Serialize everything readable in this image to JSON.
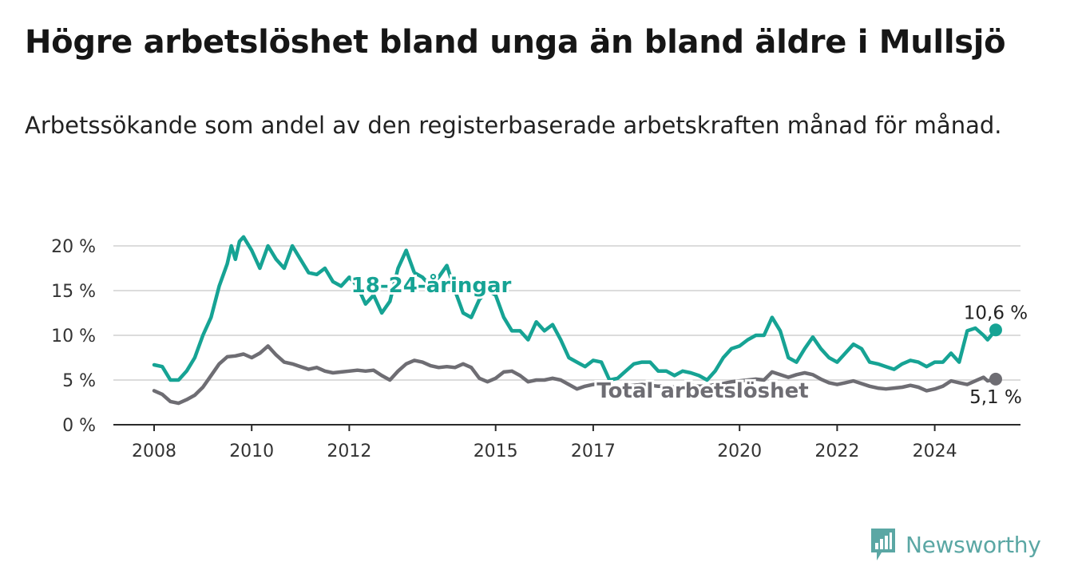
{
  "title": "Högre arbetslöshet bland unga än bland äldre i Mullsjö",
  "subtitle": "Arbetssökande som andel av den registerbaserade arbetskraften månad för månad.",
  "brand": {
    "name": "Newsworthy",
    "color": "#5ba7a4"
  },
  "chart_data": {
    "type": "line",
    "title": "Högre arbetslöshet bland unga än bland äldre i Mullsjö",
    "xlabel": "",
    "ylabel": "",
    "ylim": [
      0,
      20
    ],
    "xlim": [
      "2008-01",
      "2025-06"
    ],
    "grid": true,
    "legend": "inline",
    "y_ticks": [
      "0 %",
      "5 %",
      "10 %",
      "15 %",
      "20 %"
    ],
    "x_ticks": [
      "2008",
      "2010",
      "2012",
      "2015",
      "2017",
      "2020",
      "2022",
      "2024"
    ],
    "series": [
      {
        "name": "18-24-åringar",
        "color": "#16a394",
        "end_label": "10,6 %",
        "points": [
          [
            "2008-01",
            6.7
          ],
          [
            "2008-03",
            6.5
          ],
          [
            "2008-05",
            5.0
          ],
          [
            "2008-07",
            5.0
          ],
          [
            "2008-09",
            6.0
          ],
          [
            "2008-11",
            7.5
          ],
          [
            "2009-01",
            10.0
          ],
          [
            "2009-03",
            12.0
          ],
          [
            "2009-05",
            15.5
          ],
          [
            "2009-07",
            18.0
          ],
          [
            "2009-08",
            20.0
          ],
          [
            "2009-09",
            18.5
          ],
          [
            "2009-10",
            20.5
          ],
          [
            "2009-11",
            21.0
          ],
          [
            "2010-01",
            19.5
          ],
          [
            "2010-03",
            17.5
          ],
          [
            "2010-05",
            20.0
          ],
          [
            "2010-07",
            18.5
          ],
          [
            "2010-09",
            17.5
          ],
          [
            "2010-11",
            20.0
          ],
          [
            "2011-01",
            18.5
          ],
          [
            "2011-03",
            17.0
          ],
          [
            "2011-05",
            16.8
          ],
          [
            "2011-07",
            17.5
          ],
          [
            "2011-09",
            16.0
          ],
          [
            "2011-11",
            15.5
          ],
          [
            "2012-01",
            16.5
          ],
          [
            "2012-03",
            15.5
          ],
          [
            "2012-05",
            13.5
          ],
          [
            "2012-07",
            14.5
          ],
          [
            "2012-09",
            12.5
          ],
          [
            "2012-11",
            13.8
          ],
          [
            "2013-01",
            17.5
          ],
          [
            "2013-03",
            19.5
          ],
          [
            "2013-05",
            17.0
          ],
          [
            "2013-07",
            16.5
          ],
          [
            "2013-09",
            15.5
          ],
          [
            "2013-11",
            16.5
          ],
          [
            "2014-01",
            17.8
          ],
          [
            "2014-03",
            15.0
          ],
          [
            "2014-05",
            12.5
          ],
          [
            "2014-07",
            12.0
          ],
          [
            "2014-09",
            14.0
          ],
          [
            "2014-11",
            15.0
          ],
          [
            "2015-01",
            14.5
          ],
          [
            "2015-03",
            12.0
          ],
          [
            "2015-05",
            10.5
          ],
          [
            "2015-07",
            10.5
          ],
          [
            "2015-09",
            9.5
          ],
          [
            "2015-11",
            11.5
          ],
          [
            "2016-01",
            10.5
          ],
          [
            "2016-03",
            11.2
          ],
          [
            "2016-05",
            9.5
          ],
          [
            "2016-07",
            7.5
          ],
          [
            "2016-09",
            7.0
          ],
          [
            "2016-11",
            6.5
          ],
          [
            "2017-01",
            7.2
          ],
          [
            "2017-03",
            7.0
          ],
          [
            "2017-05",
            5.0
          ],
          [
            "2017-07",
            5.2
          ],
          [
            "2017-09",
            6.0
          ],
          [
            "2017-11",
            6.8
          ],
          [
            "2018-01",
            7.0
          ],
          [
            "2018-03",
            7.0
          ],
          [
            "2018-05",
            6.0
          ],
          [
            "2018-07",
            6.0
          ],
          [
            "2018-09",
            5.5
          ],
          [
            "2018-11",
            6.0
          ],
          [
            "2019-01",
            5.8
          ],
          [
            "2019-03",
            5.5
          ],
          [
            "2019-05",
            5.0
          ],
          [
            "2019-07",
            6.0
          ],
          [
            "2019-09",
            7.5
          ],
          [
            "2019-11",
            8.5
          ],
          [
            "2020-01",
            8.8
          ],
          [
            "2020-03",
            9.5
          ],
          [
            "2020-05",
            10.0
          ],
          [
            "2020-07",
            10.0
          ],
          [
            "2020-09",
            12.0
          ],
          [
            "2020-11",
            10.5
          ],
          [
            "2021-01",
            7.5
          ],
          [
            "2021-03",
            7.0
          ],
          [
            "2021-05",
            8.5
          ],
          [
            "2021-07",
            9.8
          ],
          [
            "2021-09",
            8.5
          ],
          [
            "2021-11",
            7.5
          ],
          [
            "2022-01",
            7.0
          ],
          [
            "2022-03",
            8.0
          ],
          [
            "2022-05",
            9.0
          ],
          [
            "2022-07",
            8.5
          ],
          [
            "2022-09",
            7.0
          ],
          [
            "2022-11",
            6.8
          ],
          [
            "2023-01",
            6.5
          ],
          [
            "2023-03",
            6.2
          ],
          [
            "2023-05",
            6.8
          ],
          [
            "2023-07",
            7.2
          ],
          [
            "2023-09",
            7.0
          ],
          [
            "2023-11",
            6.5
          ],
          [
            "2024-01",
            7.0
          ],
          [
            "2024-03",
            7.0
          ],
          [
            "2024-05",
            8.0
          ],
          [
            "2024-07",
            7.0
          ],
          [
            "2024-09",
            10.5
          ],
          [
            "2024-11",
            10.8
          ],
          [
            "2025-01",
            10.0
          ],
          [
            "2025-02",
            9.5
          ],
          [
            "2025-04",
            10.6
          ]
        ]
      },
      {
        "name": "Total arbetslöshet",
        "color": "#6e6d73",
        "end_label": "5,1 %",
        "points": [
          [
            "2008-01",
            3.8
          ],
          [
            "2008-03",
            3.4
          ],
          [
            "2008-05",
            2.6
          ],
          [
            "2008-07",
            2.4
          ],
          [
            "2008-09",
            2.8
          ],
          [
            "2008-11",
            3.3
          ],
          [
            "2009-01",
            4.2
          ],
          [
            "2009-03",
            5.5
          ],
          [
            "2009-05",
            6.8
          ],
          [
            "2009-07",
            7.6
          ],
          [
            "2009-09",
            7.7
          ],
          [
            "2009-11",
            7.9
          ],
          [
            "2010-01",
            7.5
          ],
          [
            "2010-03",
            8.0
          ],
          [
            "2010-05",
            8.8
          ],
          [
            "2010-07",
            7.8
          ],
          [
            "2010-09",
            7.0
          ],
          [
            "2010-11",
            6.8
          ],
          [
            "2011-01",
            6.5
          ],
          [
            "2011-03",
            6.2
          ],
          [
            "2011-05",
            6.4
          ],
          [
            "2011-07",
            6.0
          ],
          [
            "2011-09",
            5.8
          ],
          [
            "2011-11",
            5.9
          ],
          [
            "2012-01",
            6.0
          ],
          [
            "2012-03",
            6.1
          ],
          [
            "2012-05",
            6.0
          ],
          [
            "2012-07",
            6.1
          ],
          [
            "2012-09",
            5.5
          ],
          [
            "2012-11",
            5.0
          ],
          [
            "2013-01",
            6.0
          ],
          [
            "2013-03",
            6.8
          ],
          [
            "2013-05",
            7.2
          ],
          [
            "2013-07",
            7.0
          ],
          [
            "2013-09",
            6.6
          ],
          [
            "2013-11",
            6.4
          ],
          [
            "2014-01",
            6.5
          ],
          [
            "2014-03",
            6.4
          ],
          [
            "2014-05",
            6.8
          ],
          [
            "2014-07",
            6.4
          ],
          [
            "2014-09",
            5.2
          ],
          [
            "2014-11",
            4.8
          ],
          [
            "2015-01",
            5.2
          ],
          [
            "2015-03",
            5.9
          ],
          [
            "2015-05",
            6.0
          ],
          [
            "2015-07",
            5.5
          ],
          [
            "2015-09",
            4.8
          ],
          [
            "2015-11",
            5.0
          ],
          [
            "2016-01",
            5.0
          ],
          [
            "2016-03",
            5.2
          ],
          [
            "2016-05",
            5.0
          ],
          [
            "2016-07",
            4.5
          ],
          [
            "2016-09",
            4.0
          ],
          [
            "2016-11",
            4.3
          ],
          [
            "2017-01",
            4.5
          ],
          [
            "2017-03",
            4.6
          ],
          [
            "2017-05",
            4.4
          ],
          [
            "2017-07",
            4.2
          ],
          [
            "2017-09",
            4.3
          ],
          [
            "2017-11",
            4.4
          ],
          [
            "2018-01",
            4.5
          ],
          [
            "2018-03",
            4.4
          ],
          [
            "2018-05",
            4.3
          ],
          [
            "2018-07",
            4.3
          ],
          [
            "2018-09",
            4.2
          ],
          [
            "2018-11",
            4.3
          ],
          [
            "2019-01",
            4.4
          ],
          [
            "2019-03",
            4.3
          ],
          [
            "2019-05",
            4.3
          ],
          [
            "2019-07",
            4.5
          ],
          [
            "2019-09",
            4.6
          ],
          [
            "2019-11",
            4.8
          ],
          [
            "2020-01",
            4.9
          ],
          [
            "2020-03",
            5.0
          ],
          [
            "2020-05",
            5.1
          ],
          [
            "2020-07",
            5.0
          ],
          [
            "2020-09",
            5.9
          ],
          [
            "2020-11",
            5.6
          ],
          [
            "2021-01",
            5.3
          ],
          [
            "2021-03",
            5.6
          ],
          [
            "2021-05",
            5.8
          ],
          [
            "2021-07",
            5.6
          ],
          [
            "2021-09",
            5.1
          ],
          [
            "2021-11",
            4.7
          ],
          [
            "2022-01",
            4.5
          ],
          [
            "2022-03",
            4.7
          ],
          [
            "2022-05",
            4.9
          ],
          [
            "2022-07",
            4.6
          ],
          [
            "2022-09",
            4.3
          ],
          [
            "2022-11",
            4.1
          ],
          [
            "2023-01",
            4.0
          ],
          [
            "2023-03",
            4.1
          ],
          [
            "2023-05",
            4.2
          ],
          [
            "2023-07",
            4.4
          ],
          [
            "2023-09",
            4.2
          ],
          [
            "2023-11",
            3.8
          ],
          [
            "2024-01",
            4.0
          ],
          [
            "2024-03",
            4.3
          ],
          [
            "2024-05",
            4.9
          ],
          [
            "2024-07",
            4.7
          ],
          [
            "2024-09",
            4.5
          ],
          [
            "2024-11",
            4.9
          ],
          [
            "2025-01",
            5.3
          ],
          [
            "2025-02",
            4.9
          ],
          [
            "2025-04",
            5.1
          ]
        ]
      }
    ]
  }
}
